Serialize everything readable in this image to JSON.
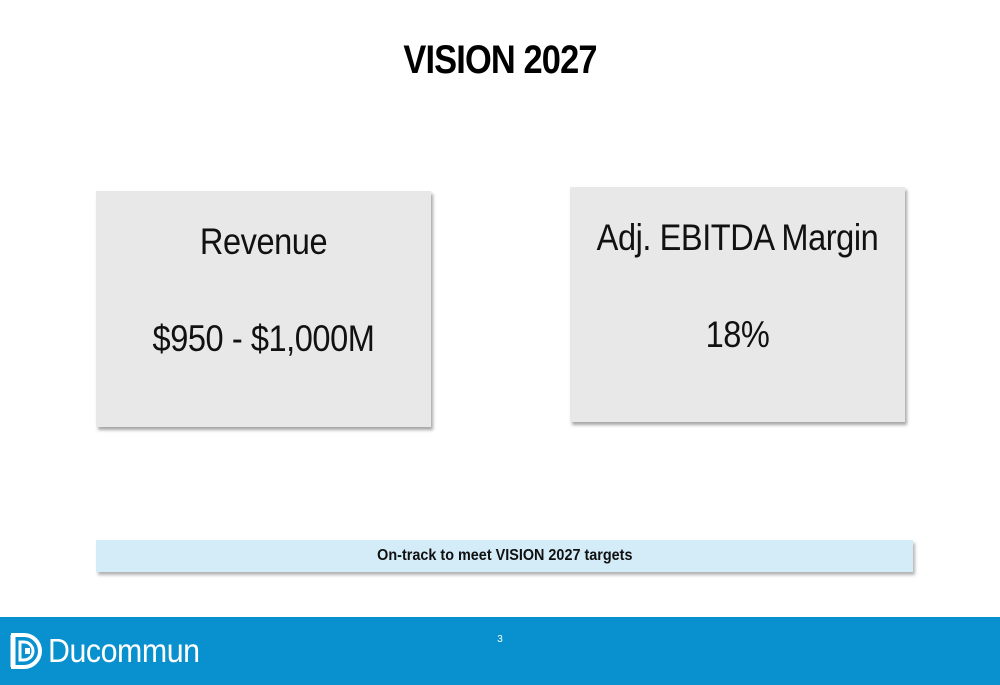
{
  "slide": {
    "title": "VISION 2027",
    "page_number": "3"
  },
  "cards": [
    {
      "label": "Revenue",
      "value": "$950 - $1,000M"
    },
    {
      "label": "Adj. EBITDA Margin",
      "value": "18%"
    }
  ],
  "banner": {
    "text": "On-track to meet VISION 2027 targets"
  },
  "footer": {
    "logo_text": "Ducommun",
    "logo_icon": "ducommun-logo-icon",
    "background_color": "#0890cf"
  }
}
